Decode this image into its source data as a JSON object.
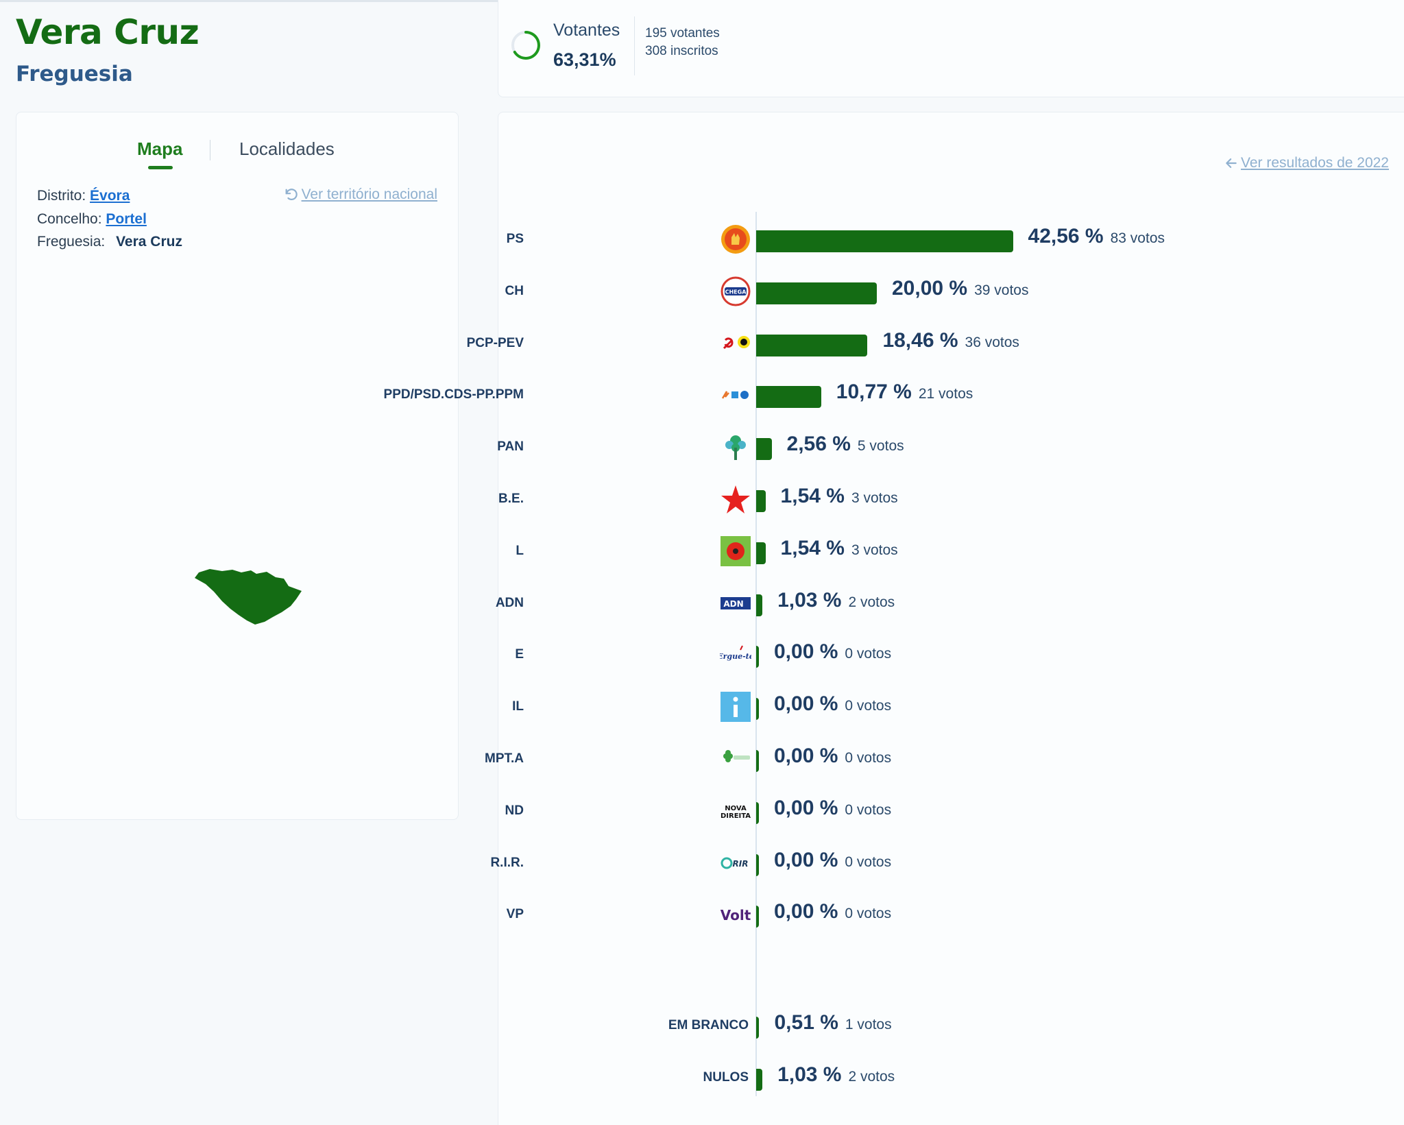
{
  "header": {
    "title": "Vera Cruz",
    "subtitle": "Freguesia"
  },
  "turnout": {
    "label": "Votantes",
    "percent": "63,31%",
    "percent_value": 63.31,
    "voters": "195 votantes",
    "registered": "308 inscritos"
  },
  "map_panel": {
    "tabs": [
      {
        "label": "Mapa",
        "active": true
      },
      {
        "label": "Localidades",
        "active": false
      }
    ],
    "distrito_label": "Distrito:",
    "distrito_value": "Évora",
    "concelho_label": "Concelho:",
    "concelho_value": "Portel",
    "freguesia_label": "Freguesia:",
    "freguesia_value": "Vera Cruz",
    "national_link": "Ver território nacional",
    "region_color": "#146c14"
  },
  "results": {
    "prev_link": "Ver resultados de 2022",
    "bar_color": "#146c14",
    "parties": [
      {
        "name": "PS",
        "pct": "42,56 %",
        "value": 42.56,
        "votes": "83 votos",
        "logo": "ps-logo-icon"
      },
      {
        "name": "CH",
        "pct": "20,00 %",
        "value": 20.0,
        "votes": "39 votos",
        "logo": "chega-logo-icon"
      },
      {
        "name": "PCP-PEV",
        "pct": "18,46 %",
        "value": 18.46,
        "votes": "36 votos",
        "logo": "pcp-pev-logo-icon"
      },
      {
        "name": "PPD/PSD.CDS-PP.PPM",
        "pct": "10,77 %",
        "value": 10.77,
        "votes": "21 votos",
        "logo": "ad-logo-icon"
      },
      {
        "name": "PAN",
        "pct": "2,56 %",
        "value": 2.56,
        "votes": "5 votos",
        "logo": "pan-logo-icon"
      },
      {
        "name": "B.E.",
        "pct": "1,54 %",
        "value": 1.54,
        "votes": "3 votos",
        "logo": "be-logo-icon"
      },
      {
        "name": "L",
        "pct": "1,54 %",
        "value": 1.54,
        "votes": "3 votos",
        "logo": "livre-logo-icon"
      },
      {
        "name": "ADN",
        "pct": "1,03 %",
        "value": 1.03,
        "votes": "2 votos",
        "logo": "adn-logo-icon"
      },
      {
        "name": "E",
        "pct": "0,00 %",
        "value": 0.0,
        "votes": "0 votos",
        "logo": "ergue-te-logo-icon"
      },
      {
        "name": "IL",
        "pct": "0,00 %",
        "value": 0.0,
        "votes": "0 votos",
        "logo": "il-logo-icon"
      },
      {
        "name": "MPT.A",
        "pct": "0,00 %",
        "value": 0.0,
        "votes": "0 votos",
        "logo": "mpt-logo-icon"
      },
      {
        "name": "ND",
        "pct": "0,00 %",
        "value": 0.0,
        "votes": "0 votos",
        "logo": "nova-direita-logo-icon"
      },
      {
        "name": "R.I.R.",
        "pct": "0,00 %",
        "value": 0.0,
        "votes": "0 votos",
        "logo": "rir-logo-icon"
      },
      {
        "name": "VP",
        "pct": "0,00 %",
        "value": 0.0,
        "votes": "0 votos",
        "logo": "volt-logo-icon"
      }
    ],
    "others": [
      {
        "name": "EM BRANCO",
        "pct": "0,51 %",
        "value": 0.51,
        "votes": "1 votos"
      },
      {
        "name": "NULOS",
        "pct": "1,03 %",
        "value": 1.03,
        "votes": "2 votos"
      }
    ]
  }
}
